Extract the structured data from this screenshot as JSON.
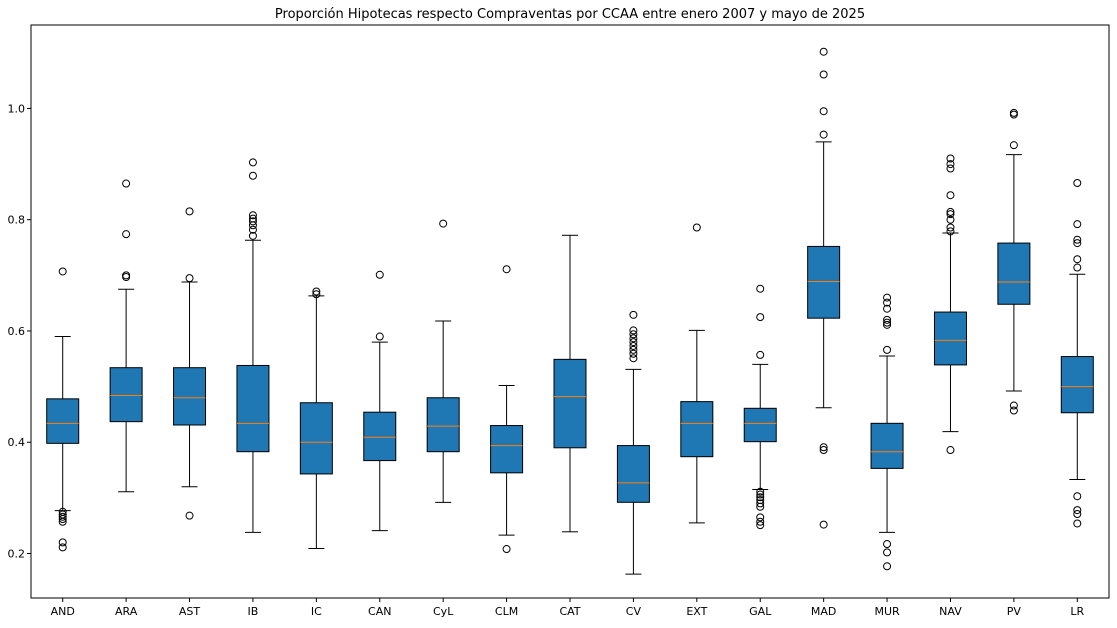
{
  "chart_data": {
    "type": "boxplot",
    "title": "Proporción Hipotecas respecto Compraventas por CCAA entre enero 2007 y mayo de 2025",
    "xlabel": "",
    "ylabel": "",
    "ylim": [
      0.12,
      1.15
    ],
    "yticks": [
      0.2,
      0.4,
      0.6,
      0.8,
      1.0
    ],
    "ytick_labels": [
      "0.2",
      "0.4",
      "0.6",
      "0.8",
      "1.0"
    ],
    "grid": false,
    "legend": "none",
    "box_color": "#1f77b4",
    "median_color": "#ff7f0e",
    "categories": [
      "AND",
      "ARA",
      "AST",
      "IB",
      "IC",
      "CAN",
      "CyL",
      "CLM",
      "CAT",
      "CV",
      "EXT",
      "GAL",
      "MAD",
      "MUR",
      "NAV",
      "PV",
      "LR"
    ],
    "boxes": [
      {
        "label": "AND",
        "whisker_low": 0.277,
        "q1": 0.398,
        "median": 0.434,
        "q3": 0.478,
        "whisker_high": 0.59,
        "outliers": [
          0.707,
          0.275,
          0.27,
          0.266,
          0.262,
          0.257,
          0.22,
          0.211
        ]
      },
      {
        "label": "ARA",
        "whisker_low": 0.311,
        "q1": 0.437,
        "median": 0.484,
        "q3": 0.534,
        "whisker_high": 0.675,
        "outliers": [
          0.865,
          0.774,
          0.7,
          0.697
        ]
      },
      {
        "label": "AST",
        "whisker_low": 0.32,
        "q1": 0.431,
        "median": 0.48,
        "q3": 0.534,
        "whisker_high": 0.688,
        "outliers": [
          0.815,
          0.695,
          0.268
        ]
      },
      {
        "label": "IB",
        "whisker_low": 0.238,
        "q1": 0.383,
        "median": 0.434,
        "q3": 0.538,
        "whisker_high": 0.763,
        "outliers": [
          0.903,
          0.879,
          0.808,
          0.802,
          0.797,
          0.79,
          0.782,
          0.771
        ]
      },
      {
        "label": "IC",
        "whisker_low": 0.209,
        "q1": 0.343,
        "median": 0.4,
        "q3": 0.471,
        "whisker_high": 0.663,
        "outliers": [
          0.671,
          0.666
        ]
      },
      {
        "label": "CAN",
        "whisker_low": 0.241,
        "q1": 0.367,
        "median": 0.409,
        "q3": 0.454,
        "whisker_high": 0.58,
        "outliers": [
          0.701,
          0.59
        ]
      },
      {
        "label": "CyL",
        "whisker_low": 0.292,
        "q1": 0.383,
        "median": 0.429,
        "q3": 0.48,
        "whisker_high": 0.618,
        "outliers": [
          0.793
        ]
      },
      {
        "label": "CLM",
        "whisker_low": 0.233,
        "q1": 0.345,
        "median": 0.394,
        "q3": 0.43,
        "whisker_high": 0.502,
        "outliers": [
          0.711,
          0.208
        ]
      },
      {
        "label": "CAT",
        "whisker_low": 0.239,
        "q1": 0.39,
        "median": 0.482,
        "q3": 0.549,
        "whisker_high": 0.772,
        "outliers": []
      },
      {
        "label": "CV",
        "whisker_low": 0.163,
        "q1": 0.292,
        "median": 0.327,
        "q3": 0.394,
        "whisker_high": 0.531,
        "outliers": [
          0.629,
          0.601,
          0.594,
          0.587,
          0.58,
          0.573,
          0.566,
          0.559,
          0.551
        ]
      },
      {
        "label": "EXT",
        "whisker_low": 0.255,
        "q1": 0.374,
        "median": 0.434,
        "q3": 0.473,
        "whisker_high": 0.601,
        "outliers": [
          0.786
        ]
      },
      {
        "label": "GAL",
        "whisker_low": 0.315,
        "q1": 0.401,
        "median": 0.434,
        "q3": 0.461,
        "whisker_high": 0.54,
        "outliers": [
          0.676,
          0.625,
          0.557,
          0.311,
          0.306,
          0.301,
          0.296,
          0.29,
          0.284,
          0.265,
          0.257,
          0.251
        ]
      },
      {
        "label": "MAD",
        "whisker_low": 0.462,
        "q1": 0.623,
        "median": 0.689,
        "q3": 0.752,
        "whisker_high": 0.94,
        "outliers": [
          1.102,
          1.061,
          0.995,
          0.953,
          0.391,
          0.386,
          0.252
        ]
      },
      {
        "label": "MUR",
        "whisker_low": 0.238,
        "q1": 0.353,
        "median": 0.383,
        "q3": 0.434,
        "whisker_high": 0.555,
        "outliers": [
          0.66,
          0.651,
          0.64,
          0.62,
          0.615,
          0.611,
          0.566,
          0.217,
          0.202,
          0.177
        ]
      },
      {
        "label": "NAV",
        "whisker_low": 0.419,
        "q1": 0.539,
        "median": 0.583,
        "q3": 0.634,
        "whisker_high": 0.776,
        "outliers": [
          0.91,
          0.9,
          0.892,
          0.844,
          0.814,
          0.81,
          0.8,
          0.786,
          0.779,
          0.386
        ]
      },
      {
        "label": "PV",
        "whisker_low": 0.492,
        "q1": 0.648,
        "median": 0.688,
        "q3": 0.758,
        "whisker_high": 0.917,
        "outliers": [
          0.992,
          0.989,
          0.934,
          0.466,
          0.457
        ]
      },
      {
        "label": "LR",
        "whisker_low": 0.333,
        "q1": 0.453,
        "median": 0.5,
        "q3": 0.554,
        "whisker_high": 0.702,
        "outliers": [
          0.866,
          0.792,
          0.764,
          0.758,
          0.729,
          0.714,
          0.303,
          0.278,
          0.271,
          0.254
        ]
      }
    ]
  }
}
